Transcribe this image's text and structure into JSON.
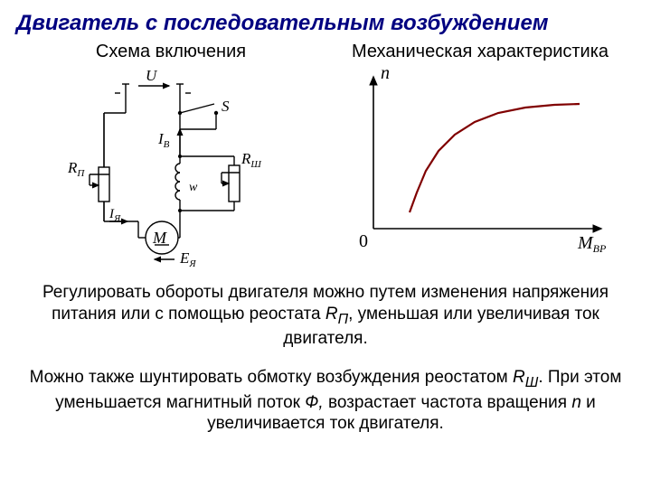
{
  "title": "Двигатель с последовательным возбуждением",
  "left_header": "Схема включения",
  "right_header": "Механическая характеристика",
  "schematic": {
    "labels": {
      "U": "U",
      "S": "S",
      "IB": "I",
      "IB_sub": "В",
      "RP": "R",
      "RP_sub": "П",
      "RSH": "R",
      "RSH_sub": "Ш",
      "Iya": "I",
      "Iya_sub": "Я",
      "w": "w",
      "M": "M",
      "Eya": "E",
      "Eya_sub": "Я"
    },
    "stroke": "#000000",
    "stroke_width": 1.4
  },
  "chart": {
    "axis_color": "#000000",
    "axis_width": 1.6,
    "curve_color": "#800000",
    "curve_width": 2.2,
    "n_label": "n",
    "origin_label": "0",
    "x_label": "M",
    "x_label_sub": "ВР",
    "curve": [
      [
        40,
        18
      ],
      [
        48,
        40
      ],
      [
        58,
        64
      ],
      [
        72,
        86
      ],
      [
        90,
        104
      ],
      [
        112,
        118
      ],
      [
        138,
        128
      ],
      [
        168,
        134
      ],
      [
        200,
        137
      ],
      [
        228,
        138
      ]
    ],
    "xlim": [
      0,
      260
    ],
    "ylim": [
      0,
      170
    ]
  },
  "paragraph1_a": "Регулировать обороты двигателя можно путем изменения напряжения питания или с помощью реостата ",
  "paragraph1_r": "R",
  "paragraph1_rsub": "П",
  "paragraph1_b": ", уменьшая или увеличивая ток двигателя.",
  "paragraph2_a": "Можно также шунтировать обмотку возбуждения реостатом ",
  "paragraph2_r": "R",
  "paragraph2_rsub": "Ш",
  "paragraph2_b": ". При этом уменьшается магнитный поток ",
  "paragraph2_phi": "Ф,",
  "paragraph2_c": " возрастает частота вращения ",
  "paragraph2_n": "n",
  "paragraph2_d": " и увеличивается ток двигателя."
}
